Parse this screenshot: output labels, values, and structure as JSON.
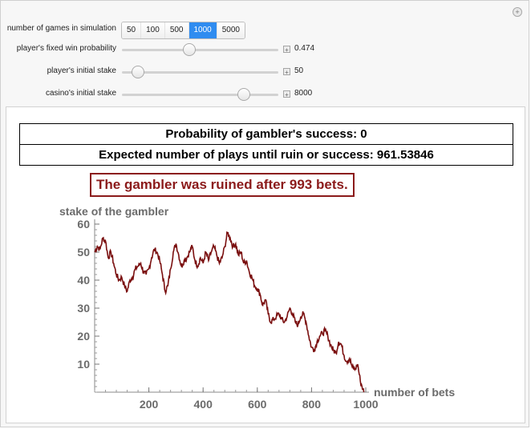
{
  "controls": {
    "games": {
      "label": "number of games in simulation",
      "options": [
        "50",
        "100",
        "500",
        "1000",
        "5000"
      ],
      "selected": "1000"
    },
    "win_probability": {
      "label": "player's fixed win probability",
      "value": "0.474",
      "position_fraction": 0.43
    },
    "initial_stake": {
      "label": "player's initial stake",
      "value": "50",
      "position_fraction": 0.1
    },
    "casino_stake": {
      "label": "casino's initial stake",
      "value": "8000",
      "position_fraction": 0.78
    }
  },
  "results": {
    "success_line": "Probability of gambler's success: 0",
    "expected_line": "Expected number of plays until ruin or success: 961.53846"
  },
  "outcome_text": "The gambler was ruined after 993 bets.",
  "chart_data": {
    "type": "line",
    "xlabel": "number of bets",
    "ylabel": "stake of the gambler",
    "xlim": [
      0,
      1000
    ],
    "ylim": [
      0,
      60
    ],
    "xticks": [
      200,
      400,
      600,
      800,
      1000
    ],
    "yticks": [
      10,
      20,
      30,
      40,
      50,
      60
    ],
    "color": "#7a0f0f",
    "series": [
      {
        "x": [
          0,
          10,
          20,
          30,
          40,
          50,
          60,
          70,
          80,
          90,
          100,
          110,
          120,
          130,
          140,
          150,
          160,
          170,
          180,
          190,
          200,
          210,
          220,
          230,
          240,
          250,
          260,
          270,
          280,
          290,
          300,
          310,
          320,
          330,
          340,
          350,
          360,
          370,
          380,
          390,
          400,
          410,
          420,
          430,
          440,
          450,
          460,
          470,
          480,
          490,
          500,
          510,
          520,
          530,
          540,
          550,
          560,
          570,
          580,
          590,
          600,
          610,
          620,
          630,
          640,
          650,
          660,
          670,
          680,
          690,
          700,
          710,
          720,
          730,
          740,
          750,
          760,
          770,
          780,
          790,
          800,
          810,
          820,
          830,
          840,
          850,
          860,
          870,
          880,
          890,
          900,
          910,
          920,
          930,
          940,
          950,
          960,
          970,
          980,
          990,
          993
        ],
        "values": [
          50,
          52,
          51,
          55,
          54,
          48,
          50,
          46,
          42,
          40,
          41,
          38,
          36,
          40,
          41,
          44,
          45,
          46,
          43,
          42,
          44,
          48,
          51,
          50,
          47,
          42,
          36,
          38,
          44,
          50,
          53,
          49,
          45,
          47,
          48,
          50,
          52,
          47,
          45,
          48,
          46,
          50,
          47,
          50,
          52,
          49,
          46,
          48,
          52,
          57,
          55,
          52,
          53,
          49,
          50,
          46,
          47,
          43,
          41,
          38,
          37,
          35,
          31,
          33,
          28,
          25,
          26,
          27,
          28,
          26,
          25,
          27,
          30,
          28,
          25,
          24,
          27,
          28,
          25,
          20,
          16,
          15,
          18,
          20,
          21,
          22,
          20,
          17,
          15,
          14,
          18,
          17,
          13,
          11,
          12,
          9,
          8,
          10,
          4,
          1,
          0
        ]
      }
    ]
  }
}
